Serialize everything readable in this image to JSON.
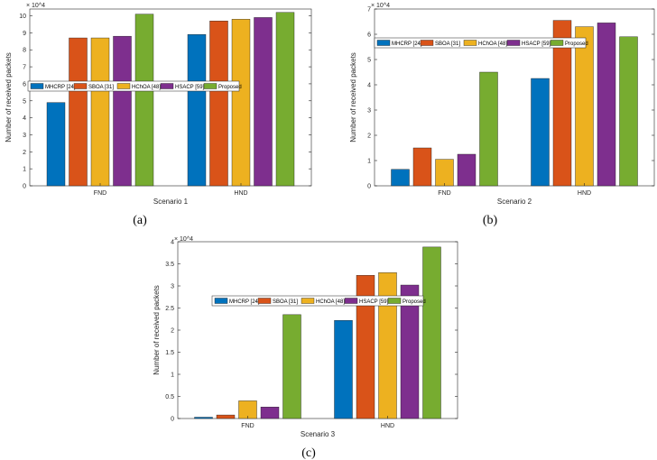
{
  "chart_data": [
    {
      "type": "bar",
      "panel_label": "(a)",
      "categories": [
        "FND",
        "HND"
      ],
      "series": [
        {
          "name": "MHCRP [24]",
          "values": [
            4.9,
            8.9
          ]
        },
        {
          "name": "SBOA [31]",
          "values": [
            8.7,
            9.7
          ]
        },
        {
          "name": "HChOA [48]",
          "values": [
            8.7,
            9.8
          ]
        },
        {
          "name": "HSACP [59]",
          "values": [
            8.8,
            9.9
          ]
        },
        {
          "name": "Proposed",
          "values": [
            10.1,
            10.2
          ]
        }
      ],
      "xlabel": "Scenario 1",
      "ylabel": "Number of received packets",
      "y_exponent": "× 10^4",
      "ylim": [
        0,
        10.4
      ],
      "yticks": [
        0,
        1,
        2,
        3,
        4,
        5,
        6,
        7,
        8,
        9,
        10
      ],
      "legend_position": "middle-right, horizontal",
      "grid": false
    },
    {
      "type": "bar",
      "panel_label": "(b)",
      "categories": [
        "FND",
        "HND"
      ],
      "series": [
        {
          "name": "MHCRP [24]",
          "values": [
            0.65,
            4.25
          ]
        },
        {
          "name": "SBOA [31]",
          "values": [
            1.5,
            6.55
          ]
        },
        {
          "name": "HChOA [48]",
          "values": [
            1.05,
            6.3
          ]
        },
        {
          "name": "HSACP [59]",
          "values": [
            1.25,
            6.45
          ]
        },
        {
          "name": "Proposed",
          "values": [
            4.5,
            5.9
          ]
        }
      ],
      "xlabel": "Scenario 2",
      "ylabel": "Number of received packets",
      "y_exponent": "× 10^4",
      "ylim": [
        0,
        7
      ],
      "yticks": [
        0,
        1,
        2,
        3,
        4,
        5,
        6,
        7
      ],
      "legend_position": "top, horizontal",
      "grid": false
    },
    {
      "type": "bar",
      "panel_label": "(c)",
      "categories": [
        "FND",
        "HND"
      ],
      "series": [
        {
          "name": "MHCRP [24]",
          "values": [
            0.03,
            2.22
          ]
        },
        {
          "name": "SBOA [31]",
          "values": [
            0.08,
            3.24
          ]
        },
        {
          "name": "HChOA [48]",
          "values": [
            0.4,
            3.3
          ]
        },
        {
          "name": "HSACP [59]",
          "values": [
            0.26,
            3.02
          ]
        },
        {
          "name": "Proposed",
          "values": [
            2.35,
            3.88
          ]
        }
      ],
      "xlabel": "Scenario 3",
      "ylabel": "Number of received packets",
      "y_exponent": "× 10^4",
      "ylim": [
        0,
        4
      ],
      "yticks": [
        0,
        0.5,
        1,
        1.5,
        2,
        2.5,
        3,
        3.5,
        4
      ],
      "legend_position": "top-right, horizontal",
      "grid": false
    }
  ],
  "colors": [
    "#0072BD",
    "#D95319",
    "#EDB120",
    "#7E2F8E",
    "#77AC30"
  ]
}
